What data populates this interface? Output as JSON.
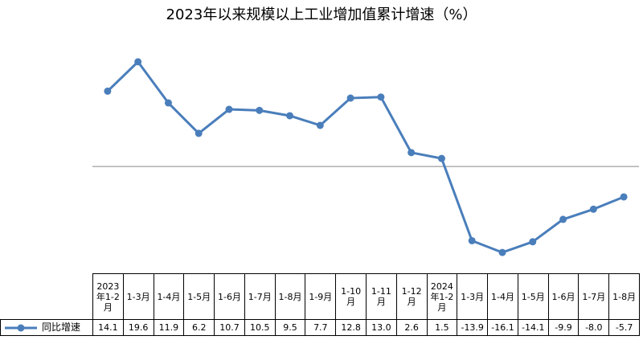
{
  "chart_data": {
    "type": "line",
    "title": "2023年以来规模以上工业增加值累计增速（%）",
    "categories": [
      "2023年1-2月",
      "1-3月",
      "1-4月",
      "1-5月",
      "1-6月",
      "1-7月",
      "1-8月",
      "1-9月",
      "1-10月",
      "1-11月",
      "1-12月",
      "2024年1-2月",
      "1-3月",
      "1-4月",
      "1-5月",
      "1-6月",
      "1-7月",
      "1-8月"
    ],
    "series": [
      {
        "name": "同比增速",
        "color": "#4a7ebb",
        "values": [
          14.1,
          19.6,
          11.9,
          6.2,
          10.7,
          10.5,
          9.5,
          7.7,
          12.8,
          13.0,
          2.6,
          1.5,
          -13.9,
          -16.1,
          -14.1,
          -9.9,
          -8.0,
          -5.7
        ],
        "value_labels": [
          "14.1",
          "19.6",
          "11.9",
          "6.2",
          "10.7",
          "10.5",
          "9.5",
          "7.7",
          "12.8",
          "13.0",
          "2.6",
          "1.5",
          "-13.9",
          "-16.1",
          "-14.1",
          "-9.9",
          "-8.0",
          "-5.7"
        ]
      }
    ],
    "ylim": [
      -20,
      25
    ]
  }
}
